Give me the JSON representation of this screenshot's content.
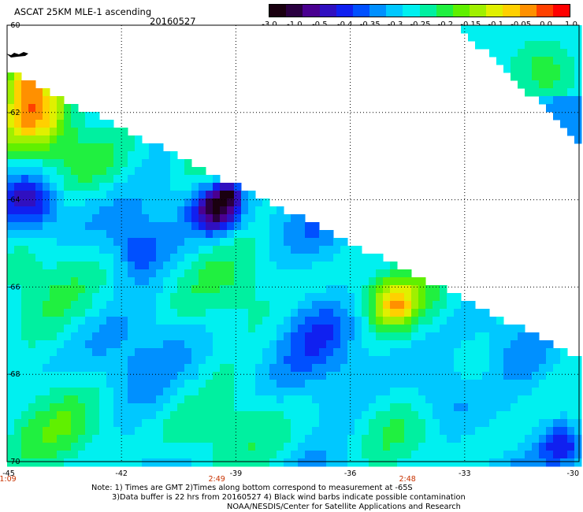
{
  "header": {
    "title": "ASCAT 25KM MLE-1 ascending",
    "date": "20160527"
  },
  "colorbar": {
    "labels": [
      "-3.0",
      "-1.0",
      "-0.5",
      "-0.4",
      "-0.35",
      "-0.3",
      "-0.25",
      "-0.2",
      "-0.15",
      "-0.1",
      "-0.05",
      "0.0",
      "1.0"
    ],
    "colors": [
      "#1a0010",
      "#2a0040",
      "#4a0090",
      "#3010c0",
      "#1020f0",
      "#0050ff",
      "#0090ff",
      "#00c8ff",
      "#00f0f0",
      "#00f0a0",
      "#20f040",
      "#60f000",
      "#a0f000",
      "#e0f000",
      "#ffd000",
      "#ff9000",
      "#ff4000",
      "#ff0000"
    ]
  },
  "chart_data": {
    "type": "heatmap",
    "title": "ASCAT 25KM MLE-1 ascending",
    "x_tick_labels": [
      "-45",
      "-42",
      "-39",
      "-36",
      "-33",
      "-30"
    ],
    "y_tick_labels": [
      "-60",
      "-62",
      "-64",
      "-66",
      "-68",
      "-70"
    ],
    "xlim": [
      -45,
      -30
    ],
    "ylim": [
      -70,
      -60
    ],
    "time_labels": [
      {
        "x": -45,
        "label": "1:09"
      },
      {
        "x": -39.5,
        "label": "2:49"
      },
      {
        "x": -34.5,
        "label": "2:48"
      }
    ],
    "colorscale": [
      "-3.0",
      "-1.0",
      "-0.5",
      "-0.4",
      "-0.35",
      "-0.3",
      "-0.25",
      "-0.2",
      "-0.15",
      "-0.1",
      "-0.05",
      "0.0",
      "1.0"
    ],
    "grid": true
  },
  "notes": {
    "line1": "Note: 1) Times are GMT 2)Times along bottom correspond to measurement at -65S",
    "line2": "3)Data buffer is 22 hrs from 20160527 4) Black wind barbs indicate possible contamination",
    "line3": "NOAA/NESDIS/Center for Satellite Applications and Research"
  },
  "colors": {
    "grid": "#000000",
    "time_label": "#c83200"
  }
}
